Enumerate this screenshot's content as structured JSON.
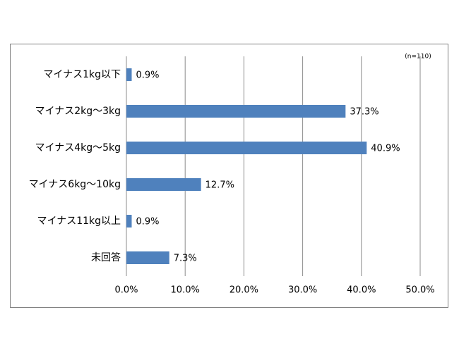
{
  "chart_data": {
    "type": "bar",
    "orientation": "horizontal",
    "annotation": "(n=110)",
    "categories": [
      "マイナス1kg以下",
      "マイナス2kg～3kg",
      "マイナス4kg～5kg",
      "マイナス6kg～10kg",
      "マイナス11kg以上",
      "未回答"
    ],
    "values": [
      0.9,
      37.3,
      40.9,
      12.7,
      0.9,
      7.3
    ],
    "value_labels": [
      "0.9%",
      "37.3%",
      "40.9%",
      "12.7%",
      "0.9%",
      "7.3%"
    ],
    "color": "#4f81bd",
    "xlim": [
      0,
      50
    ],
    "xticks": [
      {
        "value": 0,
        "label": "0.0%"
      },
      {
        "value": 10,
        "label": "10.0%"
      },
      {
        "value": 20,
        "label": "20.0%"
      },
      {
        "value": 30,
        "label": "30.0%"
      },
      {
        "value": 40,
        "label": "40.0%"
      },
      {
        "value": 50,
        "label": "50.0%"
      }
    ],
    "grid": true
  }
}
